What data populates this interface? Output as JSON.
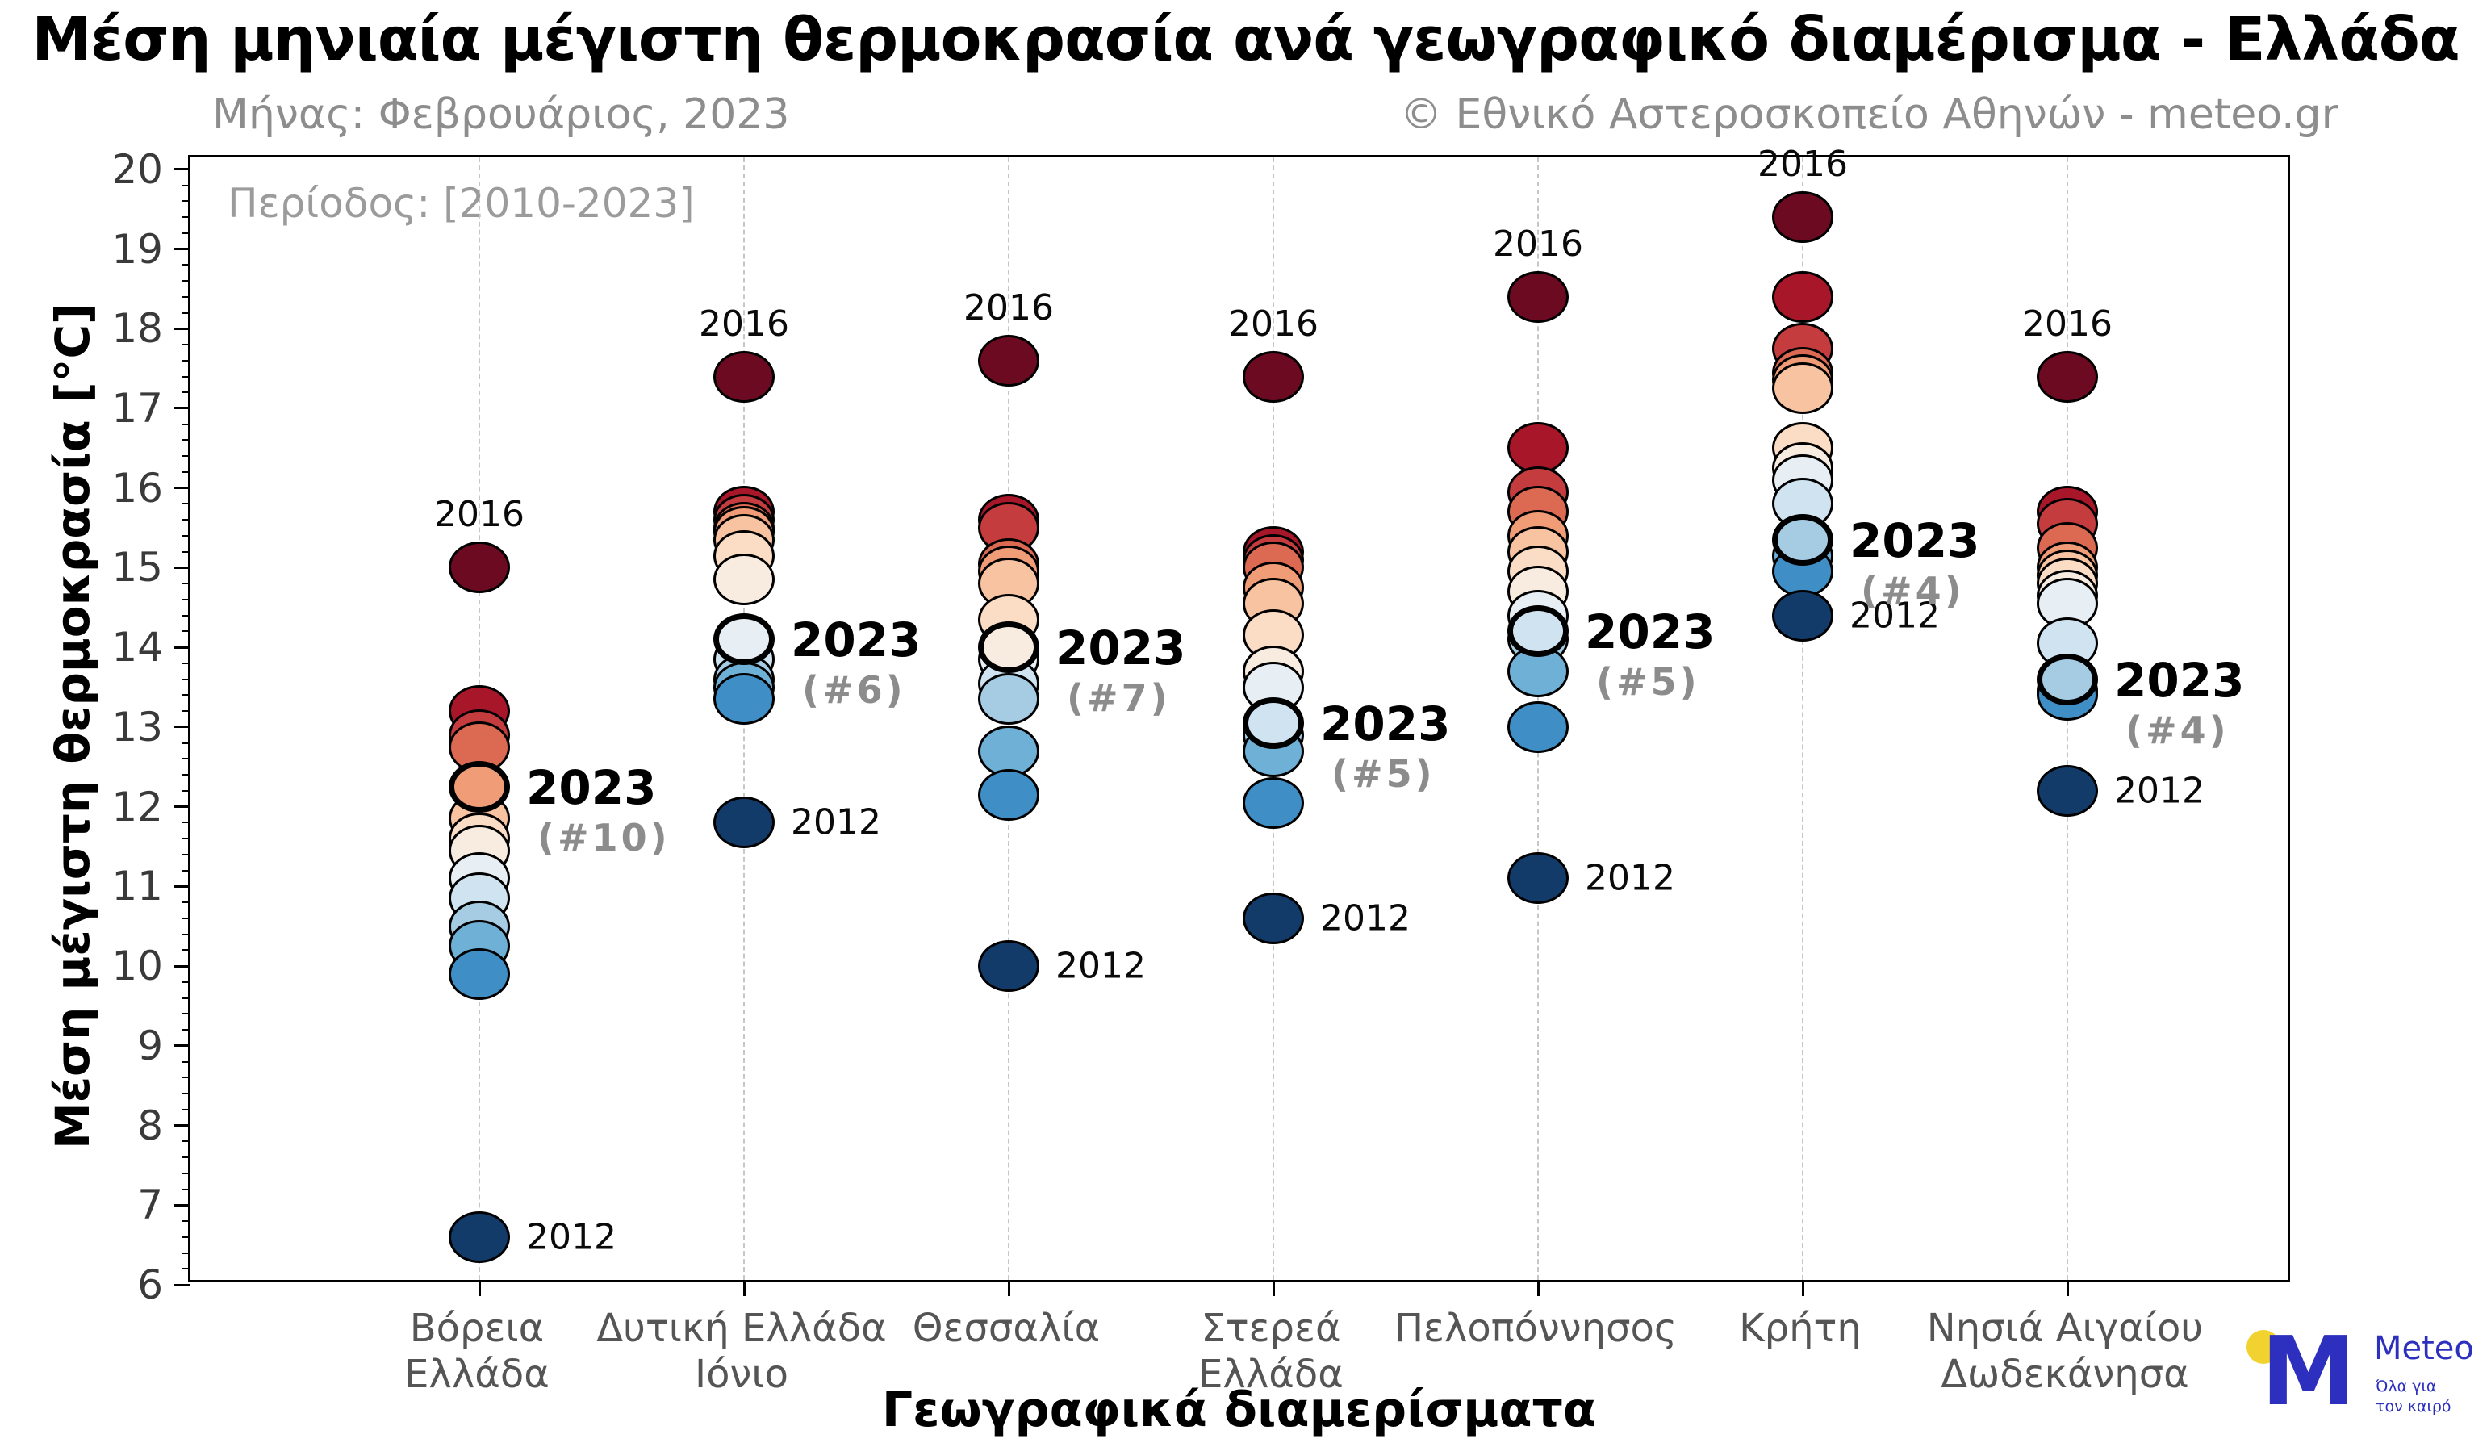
{
  "title": "Μέση μηνιαία μέγιστη θερμοκρασία ανά γεωγραφικό διαμέρισμα - Ελλάδα",
  "subtitle": "Μήνας: Φεβρουάριος, 2023",
  "copyright": "© Εθνικό Αστεροσκοπείο Αθηνών - meteo.gr",
  "period_label": "Περίοδος: [2010-2023]",
  "xlabel": "Γεωγραφικά διαμερίσματα",
  "ylabel": "Μέση μέγιστη θερμοκρασία [°C]",
  "logo": {
    "brand": "Meteo",
    "tagline_line1": "Όλα για",
    "tagline_line2": "τον καιρό",
    "blue": "#2d2fbe",
    "yellow": "#f2d22e"
  },
  "chart_data": {
    "type": "scatter",
    "title": "Μέση μηνιαία μέγιστη θερμοκρασία ανά γεωγραφικό διαμέρισμα - Ελλάδα",
    "month": "Φεβρουάριος 2023",
    "period": "2010-2023",
    "xlabel": "Γεωγραφικά διαμερίσματα",
    "ylabel": "Μέση μέγιστη θερμοκρασία [°C]",
    "ylim": [
      6,
      20.15
    ],
    "yticks": [
      6,
      7,
      8,
      9,
      10,
      11,
      12,
      13,
      14,
      15,
      16,
      17,
      18,
      19,
      20
    ],
    "y_minor_step": 0.2,
    "grid": "vertical-dashed",
    "palette_warm_to_cold": [
      "#6b0a20",
      "#a81629",
      "#c43c3d",
      "#dc6951",
      "#f09c76",
      "#f7c3a0",
      "#fbdcc4",
      "#f8ece1",
      "#e7eff5",
      "#cfe3f0",
      "#a5cce3",
      "#6fb0d7",
      "#3f8ec5",
      "#123b69"
    ],
    "annotation_2023_label": "2023",
    "series": [
      {
        "region": "Βόρεια Ελλάδα",
        "label_lines": [
          "Βόρεια",
          "Ελλάδα"
        ],
        "values": [
          15.0,
          13.2,
          12.9,
          12.75,
          12.25,
          11.85,
          11.6,
          11.45,
          11.1,
          10.85,
          10.5,
          10.25,
          9.9,
          6.6
        ],
        "max_year": "2016",
        "max_value": 15.0,
        "min_year": "2012",
        "min_value": 6.6,
        "year2023_index": 4,
        "year2023_value": 12.25,
        "rank_2023": "(#10)"
      },
      {
        "region": "Δυτική Ελλάδα Ιόνιο",
        "label_lines": [
          "Δυτική Ελλάδα",
          "Ιόνιο"
        ],
        "values": [
          17.4,
          15.7,
          15.6,
          15.5,
          15.45,
          15.35,
          15.15,
          14.85,
          14.1,
          13.85,
          13.6,
          13.5,
          13.35,
          11.8
        ],
        "max_year": "2016",
        "max_value": 17.4,
        "min_year": "2012",
        "min_value": 11.8,
        "year2023_index": 8,
        "year2023_value": 14.1,
        "rank_2023": "(#6)"
      },
      {
        "region": "Θεσσαλία",
        "label_lines": [
          "Θεσσαλία"
        ],
        "values": [
          17.6,
          15.6,
          15.5,
          15.05,
          14.95,
          14.8,
          14.35,
          14.0,
          13.85,
          13.55,
          13.35,
          12.7,
          12.15,
          10.0
        ],
        "max_year": "2016",
        "max_value": 17.6,
        "min_year": "2012",
        "min_value": 10.0,
        "year2023_index": 7,
        "year2023_value": 14.0,
        "rank_2023": "(#7)"
      },
      {
        "region": "Στερεά Ελλάδα",
        "label_lines": [
          "Στερεά",
          "Ελλάδα"
        ],
        "values": [
          17.4,
          15.2,
          15.1,
          15.0,
          14.75,
          14.55,
          14.15,
          13.7,
          13.5,
          13.05,
          12.9,
          12.7,
          12.05,
          10.6
        ],
        "max_year": "2016",
        "max_value": 17.4,
        "min_year": "2012",
        "min_value": 10.6,
        "year2023_index": 9,
        "year2023_value": 13.05,
        "rank_2023": "(#5)"
      },
      {
        "region": "Πελοπόννησος",
        "label_lines": [
          "Πελοπόννησος"
        ],
        "values": [
          18.4,
          16.5,
          15.95,
          15.7,
          15.4,
          15.2,
          14.95,
          14.7,
          14.4,
          14.2,
          14.1,
          13.7,
          13.0,
          11.1
        ],
        "max_year": "2016",
        "max_value": 18.4,
        "min_year": "2012",
        "min_value": 11.1,
        "year2023_index": 9,
        "year2023_value": 14.2,
        "rank_2023": "(#5)"
      },
      {
        "region": "Κρήτη",
        "label_lines": [
          "Κρήτη"
        ],
        "values": [
          19.4,
          18.4,
          17.75,
          17.45,
          17.35,
          17.25,
          16.5,
          16.25,
          16.1,
          15.8,
          15.35,
          15.15,
          14.95,
          14.4
        ],
        "max_year": "2016",
        "max_value": 19.4,
        "min_year": "2012",
        "min_value": 14.4,
        "year2023_index": 10,
        "year2023_value": 15.35,
        "rank_2023": "(#4)"
      },
      {
        "region": "Νησιά Αιγαίου Δωδεκάνησα",
        "label_lines": [
          "Νησιά Αιγαίου",
          "Δωδεκάνησα"
        ],
        "values": [
          17.4,
          15.7,
          15.55,
          15.25,
          15.0,
          14.9,
          14.8,
          14.65,
          14.55,
          14.05,
          13.6,
          13.45,
          13.4,
          12.2
        ],
        "max_year": "2016",
        "max_value": 17.4,
        "min_year": "2012",
        "min_value": 12.2,
        "year2023_index": 10,
        "year2023_value": 13.6,
        "rank_2023": "(#4)"
      }
    ]
  }
}
